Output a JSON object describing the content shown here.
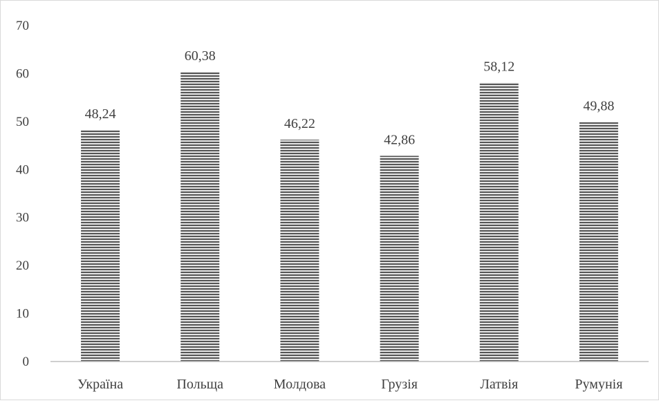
{
  "chart_data": {
    "type": "bar",
    "categories": [
      "Україна",
      "Польща",
      "Молдова",
      "Грузія",
      "Латвія",
      "Румунія"
    ],
    "values": [
      48.24,
      60.38,
      46.22,
      42.86,
      58.12,
      49.88
    ],
    "data_labels": [
      "48,24",
      "60,38",
      "46,22",
      "42,86",
      "58,12",
      "49,88"
    ],
    "y_ticks": [
      "0",
      "10",
      "20",
      "30",
      "40",
      "50",
      "60",
      "70"
    ],
    "ylim": [
      0,
      70
    ],
    "grid": false,
    "legend": "none",
    "bar_fill": "horizontal-stripes",
    "colors": {
      "bar_dark": "#555555",
      "bar_light": "#e6e6e6",
      "axis": "#bfbfbf",
      "text": "#404040"
    }
  }
}
